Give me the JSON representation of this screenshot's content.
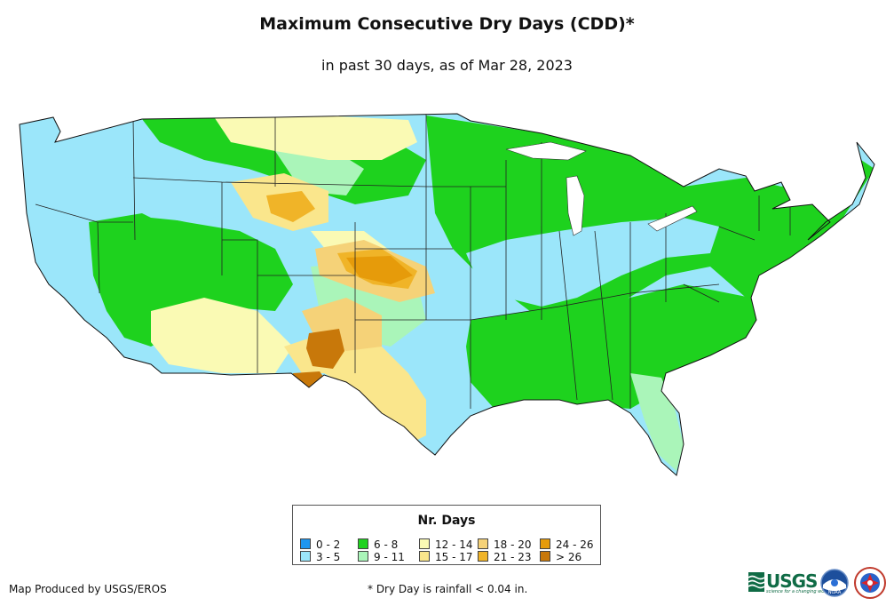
{
  "header": {
    "title": "Maximum Consecutive Dry Days (CDD)*",
    "subtitle": "in past 30 days, as of Mar 28, 2023"
  },
  "legend": {
    "title": "Nr. Days",
    "items": [
      {
        "label": "0 - 2",
        "color": "#1e96f0"
      },
      {
        "label": "3 - 5",
        "color": "#9be6fa"
      },
      {
        "label": "6 - 8",
        "color": "#1ed21e"
      },
      {
        "label": "9 - 11",
        "color": "#aaf5b9"
      },
      {
        "label": "12 - 14",
        "color": "#fafab4"
      },
      {
        "label": "15 - 17",
        "color": "#fae68c"
      },
      {
        "label": "18 - 20",
        "color": "#f5d278"
      },
      {
        "label": "21 - 23",
        "color": "#f0b428"
      },
      {
        "label": "24 - 26",
        "color": "#e69b0a"
      },
      {
        "label": "> 26",
        "color": "#c8780a"
      }
    ]
  },
  "footer": {
    "credit": "Map Produced by USGS/EROS",
    "footnote": "* Dry Day is rainfall < 0.04 in."
  },
  "logos": {
    "usgs_text": "USGS",
    "usgs_tagline": "science for a changing world",
    "noaa_text": "NOAA"
  }
}
